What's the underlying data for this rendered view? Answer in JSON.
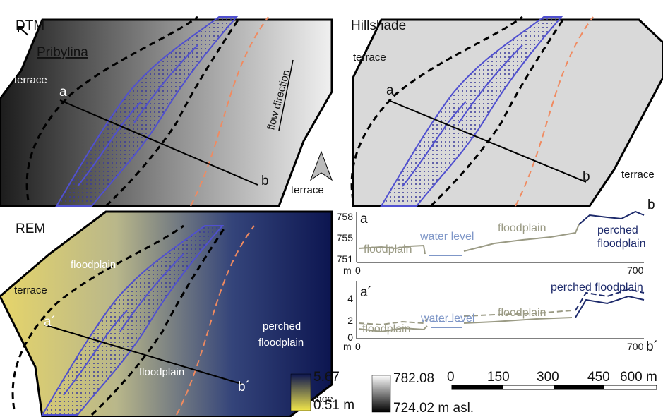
{
  "dtm": {
    "title": "DTM",
    "place": "Pribylina",
    "terrace_left": "terrace",
    "start": "a",
    "end": "b",
    "flow": "flow direction",
    "terrace_right": "terrace"
  },
  "hillshade": {
    "title": "Hillshade",
    "terrace_left": "terrace",
    "start": "a",
    "end": "b",
    "terrace_right": "terrace"
  },
  "rem": {
    "title": "REM",
    "terrace_left": "terrace",
    "floodplain_top": "floodplain",
    "start": "a´",
    "floodplain_bottom": "floodplain",
    "perched": [
      "perched",
      "floodplain"
    ],
    "end": "b´",
    "terrace_right": "terrace"
  },
  "profile_a": {
    "start": "a",
    "end": "b",
    "yticks": [
      "758",
      "755",
      "751"
    ],
    "unit": "m",
    "xticks": [
      "0",
      "700"
    ],
    "labels": {
      "floodplain_left": "floodplain",
      "water": "water level",
      "floodplain_mid": "floodplain",
      "perched": [
        "perched",
        "floodplain"
      ]
    }
  },
  "profile_b": {
    "start": "a´",
    "end": "b´",
    "yticks": [
      "4",
      "2",
      "0"
    ],
    "unit": "m",
    "xticks": [
      "0",
      "700"
    ],
    "labels": {
      "floodplain_left": "floodplain",
      "water": "water level",
      "floodplain_mid": "floodplain",
      "perched": "perched floodplain"
    }
  },
  "legend_rem": {
    "max": "5.67",
    "min": "0.51 m"
  },
  "legend_dtm": {
    "max": "782.08",
    "min": "724.02 m asl."
  },
  "scale": [
    "0",
    "150",
    "300",
    "450",
    "600 m"
  ]
}
